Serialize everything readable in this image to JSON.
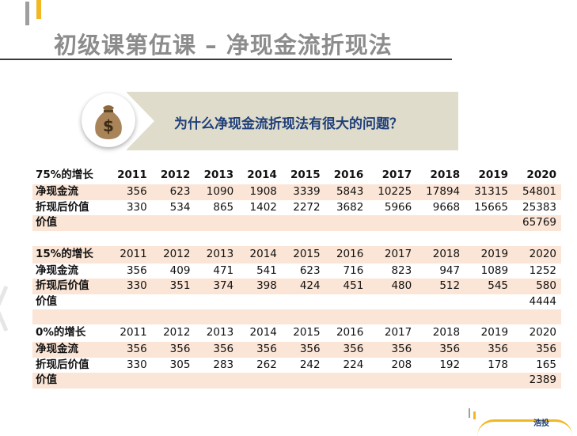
{
  "title": "初级课第伍课 – 净现金流折现法",
  "question": "为什么净现金流折现法有很大的问题？",
  "logo_text": "浩投",
  "tables": [
    {
      "header_label": "75%的增长",
      "years": [
        "2011",
        "2012",
        "2013",
        "2014",
        "2015",
        "2016",
        "2017",
        "2018",
        "2019",
        "2020"
      ],
      "net_cash_label": "净现金流",
      "net_cash": [
        "356",
        "623",
        "1090",
        "1908",
        "3339",
        "5843",
        "10225",
        "17894",
        "31315",
        "54801"
      ],
      "discounted_label": "折现后价值",
      "discounted": [
        "330",
        "534",
        "865",
        "1402",
        "2272",
        "3682",
        "5966",
        "9668",
        "15665",
        "25383"
      ],
      "value_label": "价值",
      "value": "65769"
    },
    {
      "header_label": "15%的增长",
      "years": [
        "2011",
        "2012",
        "2013",
        "2014",
        "2015",
        "2016",
        "2017",
        "2018",
        "2019",
        "2020"
      ],
      "net_cash_label": "净现金流",
      "net_cash": [
        "356",
        "409",
        "471",
        "541",
        "623",
        "716",
        "823",
        "947",
        "1089",
        "1252"
      ],
      "discounted_label": "折现后价值",
      "discounted": [
        "330",
        "351",
        "374",
        "398",
        "424",
        "451",
        "480",
        "512",
        "545",
        "580"
      ],
      "value_label": "价值",
      "value": "4444"
    },
    {
      "header_label": "0%的增长",
      "years": [
        "2011",
        "2012",
        "2013",
        "2014",
        "2015",
        "2016",
        "2017",
        "2018",
        "2019",
        "2020"
      ],
      "net_cash_label": "净现金流",
      "net_cash": [
        "356",
        "356",
        "356",
        "356",
        "356",
        "356",
        "356",
        "356",
        "356",
        "356"
      ],
      "discounted_label": "折现后价值",
      "discounted": [
        "330",
        "305",
        "283",
        "262",
        "242",
        "224",
        "208",
        "192",
        "178",
        "165"
      ],
      "value_label": "价值",
      "value": "2389"
    }
  ]
}
